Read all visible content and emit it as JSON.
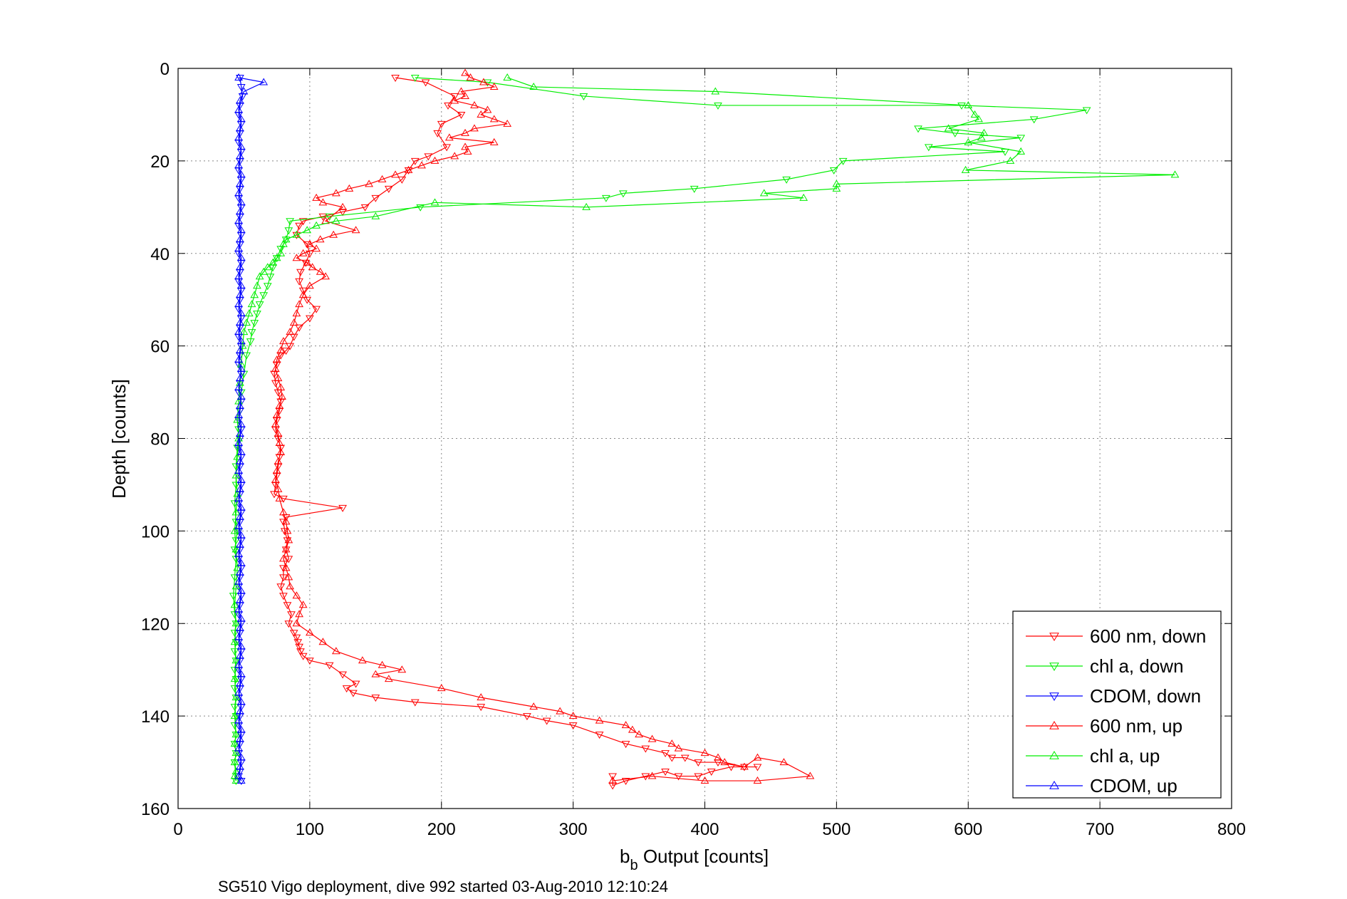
{
  "chart_data": {
    "type": "line",
    "xlabel_main": "b",
    "xlabel_sub": "b",
    "xlabel_rest": " Output [counts]",
    "ylabel": "Depth [counts]",
    "caption": "SG510 Vigo deployment, dive 992 started 03-Aug-2010 12:10:24",
    "xlim": [
      0,
      800
    ],
    "ylim": [
      0,
      160
    ],
    "y_reversed": true,
    "grid": true,
    "legend_position": "bottom-right",
    "x_ticks": [
      0,
      100,
      200,
      300,
      400,
      500,
      600,
      700,
      800
    ],
    "y_ticks": [
      0,
      20,
      40,
      60,
      80,
      100,
      120,
      140,
      160
    ],
    "series": [
      {
        "name": "600 nm, down",
        "color": "#ff0000",
        "marker": "triangle-down",
        "x": [
          165,
          188,
          210,
          205,
          215,
          200,
          197,
          204,
          190,
          180,
          175,
          170,
          160,
          150,
          142,
          125,
          110,
          95,
          92,
          90,
          98,
          100,
          97,
          93,
          92,
          95,
          98,
          105,
          100,
          92,
          88,
          85,
          82,
          78,
          75,
          73,
          74,
          76,
          78,
          77,
          75,
          74,
          76,
          78,
          77,
          76,
          75,
          74,
          73,
          80,
          125,
          82,
          80,
          81,
          83,
          82,
          84,
          80,
          80,
          78,
          80,
          83,
          86,
          84,
          88,
          90,
          91,
          92,
          93,
          95,
          100,
          115,
          125,
          135,
          128,
          133,
          150,
          180,
          230,
          265,
          280,
          300,
          320,
          340,
          355,
          370,
          375,
          385,
          395,
          410,
          430,
          440,
          420,
          405,
          395,
          380,
          370,
          355,
          340,
          330,
          330
        ],
        "y": [
          2,
          3,
          6,
          8,
          10,
          12,
          14,
          17,
          19,
          20,
          22,
          24,
          26,
          28,
          30,
          31,
          32,
          33,
          34,
          36,
          38,
          40,
          42,
          44,
          46,
          48,
          50,
          52,
          54,
          56,
          58,
          60,
          61,
          62,
          64,
          66,
          68,
          70,
          72,
          74,
          76,
          78,
          80,
          82,
          84,
          86,
          88,
          90,
          92,
          93,
          95,
          97,
          98,
          100,
          102,
          104,
          106,
          108,
          110,
          112,
          114,
          116,
          118,
          120,
          122,
          123,
          124,
          125,
          126,
          127,
          128,
          129,
          131,
          133,
          134,
          135,
          136,
          137,
          138,
          140,
          141,
          142,
          144,
          146,
          147,
          148,
          149,
          149,
          150,
          150,
          151,
          151,
          151,
          152,
          153,
          153,
          152,
          153,
          154,
          155,
          153
        ]
      },
      {
        "name": "chl a, down",
        "color": "#00ee00",
        "marker": "triangle-down",
        "x": [
          180,
          235,
          308,
          410,
          595,
          690,
          650,
          562,
          590,
          640,
          570,
          628,
          505,
          498,
          462,
          392,
          338,
          325,
          184,
          115,
          85,
          84,
          82,
          78,
          75,
          72,
          70,
          68,
          65,
          62,
          60,
          58,
          56,
          55,
          52,
          50,
          48,
          47,
          46,
          45,
          44,
          44,
          43,
          44,
          45,
          44,
          43,
          44,
          43,
          42,
          43,
          44,
          43,
          44,
          43,
          44,
          43,
          44,
          43,
          44,
          43,
          44,
          43,
          44,
          43,
          44,
          43,
          44
        ],
        "y": [
          2,
          3,
          6,
          8,
          8,
          9,
          11,
          13,
          14,
          15,
          17,
          18,
          20,
          22,
          24,
          26,
          27,
          28,
          30,
          32,
          33,
          35,
          37,
          39,
          41,
          43,
          45,
          47,
          49,
          51,
          53,
          55,
          57,
          59,
          62,
          66,
          70,
          74,
          78,
          82,
          86,
          90,
          94,
          98,
          100,
          102,
          104,
          106,
          110,
          114,
          118,
          120,
          122,
          124,
          126,
          128,
          130,
          132,
          134,
          136,
          138,
          140,
          142,
          144,
          146,
          148,
          150,
          154
        ]
      },
      {
        "name": "CDOM, down",
        "color": "#0000ff",
        "marker": "triangle-down",
        "x": [
          47,
          48,
          49,
          47,
          46,
          48,
          47,
          46,
          48,
          47,
          46,
          48,
          47,
          46,
          48,
          47,
          46,
          48,
          47,
          46,
          48,
          47,
          46,
          48,
          47,
          46,
          48,
          47,
          46,
          48,
          47,
          46,
          48,
          47,
          46,
          48,
          47,
          46,
          48,
          47,
          46,
          48,
          47,
          46,
          48,
          47,
          46,
          48,
          47,
          46,
          48,
          47,
          46,
          48,
          47,
          46,
          48,
          47,
          46,
          48,
          47,
          46,
          48,
          47,
          46,
          48,
          47,
          46,
          48,
          47,
          46,
          48,
          47,
          46,
          48,
          47,
          46,
          48
        ],
        "y": [
          2,
          4,
          6,
          8,
          10,
          12,
          14,
          16,
          18,
          20,
          22,
          24,
          26,
          28,
          30,
          32,
          34,
          36,
          38,
          40,
          42,
          44,
          46,
          48,
          50,
          52,
          54,
          56,
          58,
          60,
          62,
          64,
          66,
          68,
          70,
          72,
          74,
          76,
          78,
          80,
          82,
          84,
          86,
          88,
          90,
          92,
          94,
          96,
          98,
          100,
          102,
          104,
          106,
          108,
          110,
          112,
          114,
          116,
          118,
          120,
          122,
          124,
          126,
          128,
          130,
          132,
          134,
          136,
          138,
          140,
          142,
          144,
          146,
          148,
          150,
          152,
          153,
          154
        ]
      },
      {
        "name": "600 nm, up",
        "color": "#ff0000",
        "marker": "triangle-up",
        "x": [
          218,
          222,
          232,
          240,
          215,
          218,
          210,
          225,
          235,
          230,
          240,
          250,
          225,
          218,
          206,
          240,
          218,
          220,
          210,
          195,
          185,
          175,
          165,
          155,
          145,
          130,
          120,
          105,
          110,
          125,
          112,
          135,
          118,
          108,
          100,
          105,
          95,
          90,
          98,
          102,
          108,
          112,
          100,
          95,
          92,
          90,
          88,
          85,
          80,
          78,
          75,
          74,
          76,
          78,
          79,
          77,
          75,
          74,
          76,
          77,
          78,
          76,
          75,
          74,
          76,
          77,
          80,
          82,
          83,
          84,
          82,
          80,
          82,
          84,
          85,
          90,
          95,
          92,
          90,
          100,
          110,
          120,
          140,
          155,
          170,
          150,
          160,
          200,
          230,
          270,
          290,
          300,
          320,
          340,
          345,
          350,
          360,
          375,
          380,
          400,
          410,
          415,
          430,
          440,
          460,
          480,
          440,
          400,
          360,
          330
        ],
        "y": [
          1,
          2,
          3,
          4,
          5,
          6,
          7,
          8,
          9,
          10,
          11,
          12,
          13,
          14,
          15,
          16,
          17,
          18,
          19,
          20,
          21,
          22,
          23,
          24,
          25,
          26,
          27,
          28,
          29,
          30,
          33,
          35,
          36,
          37,
          38,
          39,
          40,
          41,
          42,
          43,
          44,
          45,
          47,
          49,
          51,
          53,
          55,
          57,
          59,
          61,
          63,
          65,
          67,
          69,
          71,
          73,
          75,
          77,
          79,
          81,
          83,
          85,
          87,
          89,
          91,
          93,
          96,
          98,
          100,
          102,
          104,
          106,
          108,
          110,
          112,
          114,
          116,
          118,
          120,
          122,
          124,
          126,
          128,
          129,
          130,
          131,
          132,
          134,
          136,
          138,
          139,
          140,
          141,
          142,
          143,
          144,
          145,
          146,
          147,
          148,
          149,
          150,
          151,
          149,
          150,
          153,
          154,
          154,
          153,
          154
        ]
      },
      {
        "name": "chl a, up",
        "color": "#00ee00",
        "marker": "triangle-up",
        "x": [
          250,
          270,
          408,
          600,
          605,
          608,
          585,
          612,
          610,
          600,
          640,
          632,
          598,
          757,
          500,
          500,
          445,
          475,
          310,
          195,
          150,
          120,
          105,
          98,
          90,
          82,
          80,
          78,
          75,
          72,
          68,
          65,
          62,
          60,
          58,
          56,
          54,
          52,
          50,
          49,
          48,
          47,
          46,
          45,
          46,
          45,
          44,
          45,
          44,
          43,
          44,
          45,
          44,
          43,
          44,
          43,
          44,
          43,
          44,
          43,
          44,
          43,
          44,
          43,
          44,
          43,
          44
        ],
        "y": [
          2,
          4,
          5,
          8,
          10,
          11,
          13,
          14,
          15,
          16,
          18,
          20,
          22,
          23,
          25,
          26,
          27,
          28,
          30,
          29,
          32,
          33,
          34,
          35,
          36,
          37,
          38,
          40,
          41,
          42,
          43,
          44,
          45,
          47,
          49,
          51,
          53,
          55,
          57,
          60,
          64,
          68,
          72,
          76,
          80,
          84,
          88,
          92,
          96,
          100,
          104,
          108,
          112,
          116,
          120,
          124,
          128,
          132,
          136,
          140,
          144,
          146,
          148,
          150,
          152,
          153,
          154
        ]
      },
      {
        "name": "CDOM, up",
        "color": "#0000ff",
        "marker": "triangle-up",
        "x": [
          46,
          65,
          50,
          47,
          46,
          48,
          47,
          46,
          48,
          47,
          46,
          48,
          47,
          46,
          48,
          47,
          46,
          48,
          47,
          46,
          48,
          47,
          46,
          48,
          47,
          46,
          48,
          47,
          46,
          48,
          47,
          46,
          48,
          47,
          46,
          48,
          47,
          46,
          48,
          47,
          46,
          48,
          47,
          46,
          48,
          47,
          46,
          48,
          47,
          46,
          48,
          47,
          46,
          48,
          47,
          46,
          48,
          47,
          46,
          48,
          47,
          46,
          48,
          47,
          46,
          48,
          47,
          46,
          48,
          47,
          46,
          48,
          47,
          46,
          48,
          47,
          46,
          48
        ],
        "y": [
          2,
          3,
          5,
          7,
          9,
          11,
          13,
          15,
          17,
          19,
          21,
          23,
          25,
          27,
          29,
          31,
          33,
          35,
          37,
          39,
          41,
          43,
          45,
          47,
          49,
          51,
          53,
          55,
          57,
          59,
          61,
          63,
          65,
          67,
          69,
          71,
          73,
          75,
          77,
          79,
          81,
          83,
          85,
          87,
          89,
          91,
          93,
          95,
          97,
          99,
          101,
          103,
          105,
          107,
          109,
          111,
          113,
          115,
          117,
          119,
          121,
          123,
          125,
          127,
          129,
          131,
          133,
          135,
          137,
          139,
          141,
          143,
          145,
          147,
          149,
          151,
          153,
          154
        ]
      }
    ]
  }
}
